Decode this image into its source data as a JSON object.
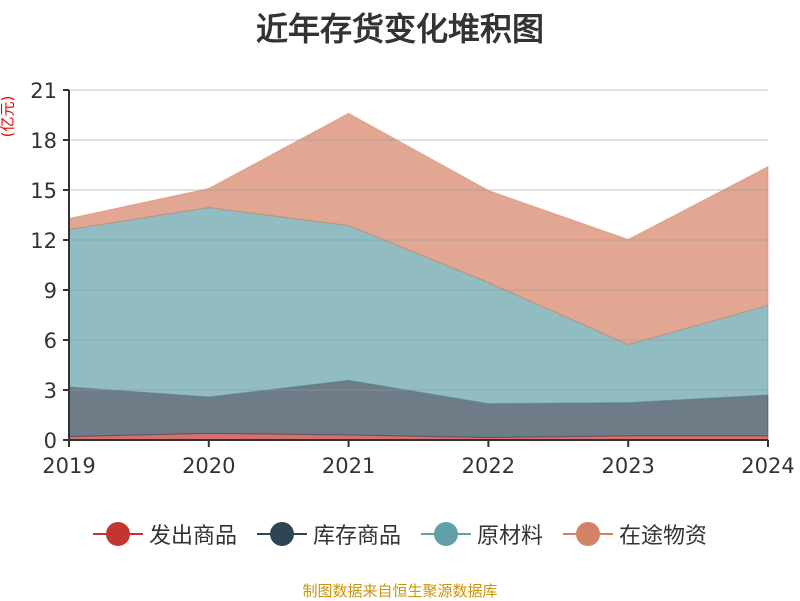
{
  "chart_data": {
    "type": "area",
    "stacked": true,
    "title": "近年存货变化堆积图",
    "ylabel": "(亿元)",
    "xlabel": "",
    "categories": [
      "2019",
      "2020",
      "2021",
      "2022",
      "2023",
      "2024"
    ],
    "ylim": [
      0,
      21
    ],
    "yticks": [
      "0",
      "3",
      "6",
      "9",
      "12",
      "15",
      "18",
      "21"
    ],
    "grid": true,
    "legend_position": "bottom",
    "series": [
      {
        "name": "发出商品",
        "color": "#c23531",
        "values": [
          0.2,
          0.4,
          0.3,
          0.15,
          0.25,
          0.25
        ]
      },
      {
        "name": "库存商品",
        "color": "#2f4554",
        "values": [
          2.98,
          2.18,
          3.28,
          2.03,
          1.99,
          2.45
        ]
      },
      {
        "name": "原材料",
        "color": "#61a0a8",
        "values": [
          9.45,
          11.37,
          9.29,
          7.27,
          3.49,
          5.37
        ]
      },
      {
        "name": "在途物资",
        "color": "#d48265",
        "values": [
          0.66,
          1.14,
          6.73,
          5.52,
          6.3,
          8.33
        ]
      }
    ]
  },
  "source": "制图数据来自恒生聚源数据库"
}
